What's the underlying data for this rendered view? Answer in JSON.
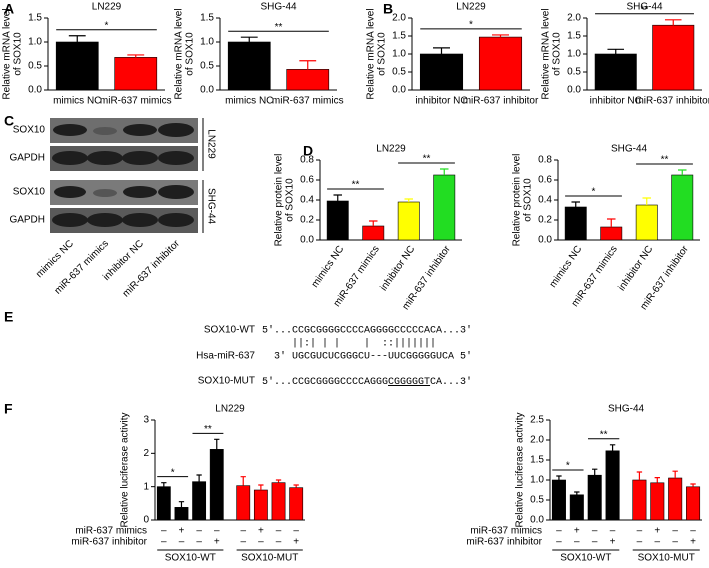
{
  "panel_labels": [
    "A",
    "B",
    "C",
    "D",
    "E",
    "F"
  ],
  "blot": {
    "rows": [
      "SOX10",
      "GAPDH",
      "SOX10",
      "GAPDH"
    ],
    "cell_lines": [
      "LN229",
      "SHG-44"
    ],
    "lanes": [
      "mimics NC",
      "miR-637 mimics",
      "inhibitor NC",
      "miR-637 inhibitor"
    ]
  },
  "sequence": {
    "wt_name": "SOX10-WT",
    "wt": "5'...CCGCGGGGCCCCAGGGGCCCCCACA...3'",
    "pairing": "     ||:| | |    |  ::|||||||",
    "mirna_name": "Hsa-miR-637",
    "mirna": "  3' UGCGUCUCGGGCU---UUCGGGGGUCA 5'",
    "mut_name": "SOX10-MUT",
    "mut": [
      "5'...CCGCGGGGCCCCAGGG",
      "CGGGGGT",
      "CA...3'"
    ]
  },
  "chart_data": [
    {
      "type": "bar",
      "title": "LN229",
      "ylabel": [
        "Relative mRNA level",
        "of SOX10"
      ],
      "categories": [
        "mimics NC",
        "miR-637 mimics"
      ],
      "values": [
        1.0,
        0.68
      ],
      "errors": [
        0.13,
        0.05
      ],
      "colors": [
        "#000000",
        "#ff0000"
      ],
      "ylim": [
        0,
        1.5
      ],
      "yticks": [
        {
          "value": 0,
          "label": "0.0"
        },
        0.5,
        {
          "value": 1,
          "label": "1.0"
        },
        1.5
      ],
      "annotations": [
        "*"
      ]
    },
    {
      "type": "bar",
      "title": "SHG-44",
      "ylabel": [
        "Relative mRNA level",
        "of SOX10"
      ],
      "categories": [
        "mimics NC",
        "miR-637 mimics"
      ],
      "values": [
        1.0,
        0.43
      ],
      "errors": [
        0.1,
        0.18
      ],
      "colors": [
        "#000000",
        "#ff0000"
      ],
      "ylim": [
        0,
        1.5
      ],
      "yticks": [
        {
          "value": 0,
          "label": "0.0"
        },
        0.5,
        {
          "value": 1,
          "label": "1.0"
        },
        1.5
      ],
      "annotations": [
        "**"
      ]
    },
    {
      "type": "bar",
      "title": "LN229",
      "ylabel": [
        "Relative mRNA level",
        "of SOX10"
      ],
      "categories": [
        "inhibitor NC",
        "miR-637 inhibitor"
      ],
      "values": [
        1.0,
        1.47
      ],
      "errors": [
        0.17,
        0.06
      ],
      "colors": [
        "#000000",
        "#ff0000"
      ],
      "ylim": [
        0,
        2
      ],
      "yticks": [
        {
          "value": 0,
          "label": "0.0"
        },
        0.5,
        {
          "value": 1,
          "label": "1.0"
        },
        1.5,
        {
          "value": 2,
          "label": "2.0"
        }
      ],
      "annotations": [
        "*"
      ]
    },
    {
      "type": "bar",
      "title": "SHG-44",
      "ylabel": [
        "Relative mRNA level",
        "of SOX10"
      ],
      "categories": [
        "inhibitor NC",
        "miR-637 inhibitor"
      ],
      "values": [
        1.0,
        1.8
      ],
      "errors": [
        0.13,
        0.15
      ],
      "colors": [
        "#000000",
        "#ff0000"
      ],
      "ylim": [
        0,
        2
      ],
      "yticks": [
        {
          "value": 0,
          "label": "0.0"
        },
        0.5,
        {
          "value": 1,
          "label": "1.0"
        },
        1.5,
        {
          "value": 2,
          "label": "2.0"
        }
      ],
      "annotations": [
        "**"
      ]
    },
    {
      "type": "bar",
      "title": "LN229",
      "ylabel": [
        "Relative protein level",
        "of SOX10"
      ],
      "categories": [
        "mimics NC",
        "miR-637 mimics",
        "inhibitor NC",
        "miR-637 inhibitor"
      ],
      "values": [
        0.39,
        0.14,
        0.38,
        0.65
      ],
      "errors": [
        0.06,
        0.05,
        0.03,
        0.06
      ],
      "colors": [
        "#000000",
        "#ff0000",
        "#ffff00",
        "#22dd22"
      ],
      "ylim": [
        0,
        0.8
      ],
      "yticks": [
        {
          "value": 0,
          "label": "0.0"
        },
        0.2,
        0.4,
        0.6,
        0.8
      ],
      "annotations": [
        "**",
        "**"
      ]
    },
    {
      "type": "bar",
      "title": "SHG-44",
      "ylabel": [
        "Relative protein level",
        "of SOX10"
      ],
      "categories": [
        "mimics NC",
        "miR-637 mimics",
        "inhibitor NC",
        "miR-637 inhibitor"
      ],
      "values": [
        0.33,
        0.13,
        0.35,
        0.65
      ],
      "errors": [
        0.05,
        0.08,
        0.07,
        0.05
      ],
      "colors": [
        "#000000",
        "#ff0000",
        "#ffff00",
        "#22dd22"
      ],
      "ylim": [
        0,
        0.8
      ],
      "yticks": [
        {
          "value": 0,
          "label": "0.0"
        },
        0.2,
        0.4,
        0.6,
        0.8
      ],
      "annotations": [
        "*",
        "**"
      ]
    },
    {
      "type": "bar",
      "title": "LN229",
      "ylabel": [
        "Relative luciferase activity"
      ],
      "categories": [
        null,
        null,
        null,
        null
      ],
      "conditions": [
        {
          "name": "miR-637 mimics",
          "marks": [
            "–",
            "+",
            "–",
            "–"
          ]
        },
        {
          "name": "miR-637 inhibitor",
          "marks": [
            "–",
            "–",
            "–",
            "+"
          ]
        }
      ],
      "series": [
        {
          "name": "SOX10-WT",
          "color": "#000000",
          "values": [
            1.0,
            0.38,
            1.15,
            2.12
          ],
          "errors": [
            0.12,
            0.17,
            0.2,
            0.3
          ]
        },
        {
          "name": "SOX10-MUT",
          "color": "#ff0000",
          "values": [
            1.03,
            0.9,
            1.12,
            0.97
          ],
          "errors": [
            0.27,
            0.15,
            0.08,
            0.08
          ]
        }
      ],
      "ylim": [
        0,
        3
      ],
      "yticks": [
        0,
        1,
        2,
        3
      ],
      "annotations": [
        "*",
        "**"
      ]
    },
    {
      "type": "bar",
      "title": "SHG-44",
      "ylabel": [
        "Relative luciferase activity"
      ],
      "categories": [
        null,
        null,
        null,
        null
      ],
      "conditions": [
        {
          "name": "miR-637 mimics",
          "marks": [
            "–",
            "+",
            "–",
            "–"
          ]
        },
        {
          "name": "miR-637 inhibitor",
          "marks": [
            "–",
            "–",
            "–",
            "+"
          ]
        }
      ],
      "series": [
        {
          "name": "SOX10-WT",
          "color": "#000000",
          "values": [
            1.0,
            0.63,
            1.12,
            1.73
          ],
          "errors": [
            0.1,
            0.07,
            0.15,
            0.15
          ]
        },
        {
          "name": "SOX10-MUT",
          "color": "#ff0000",
          "values": [
            1.0,
            0.93,
            1.05,
            0.83
          ],
          "errors": [
            0.2,
            0.13,
            0.17,
            0.07
          ]
        }
      ],
      "ylim": [
        0,
        2.5
      ],
      "yticks": [
        {
          "value": 0,
          "label": "0.0"
        },
        0.5,
        {
          "value": 1,
          "label": "1.0"
        },
        1.5,
        {
          "value": 2,
          "label": "2.0"
        },
        2.5
      ],
      "annotations": [
        "*",
        "**"
      ]
    }
  ]
}
